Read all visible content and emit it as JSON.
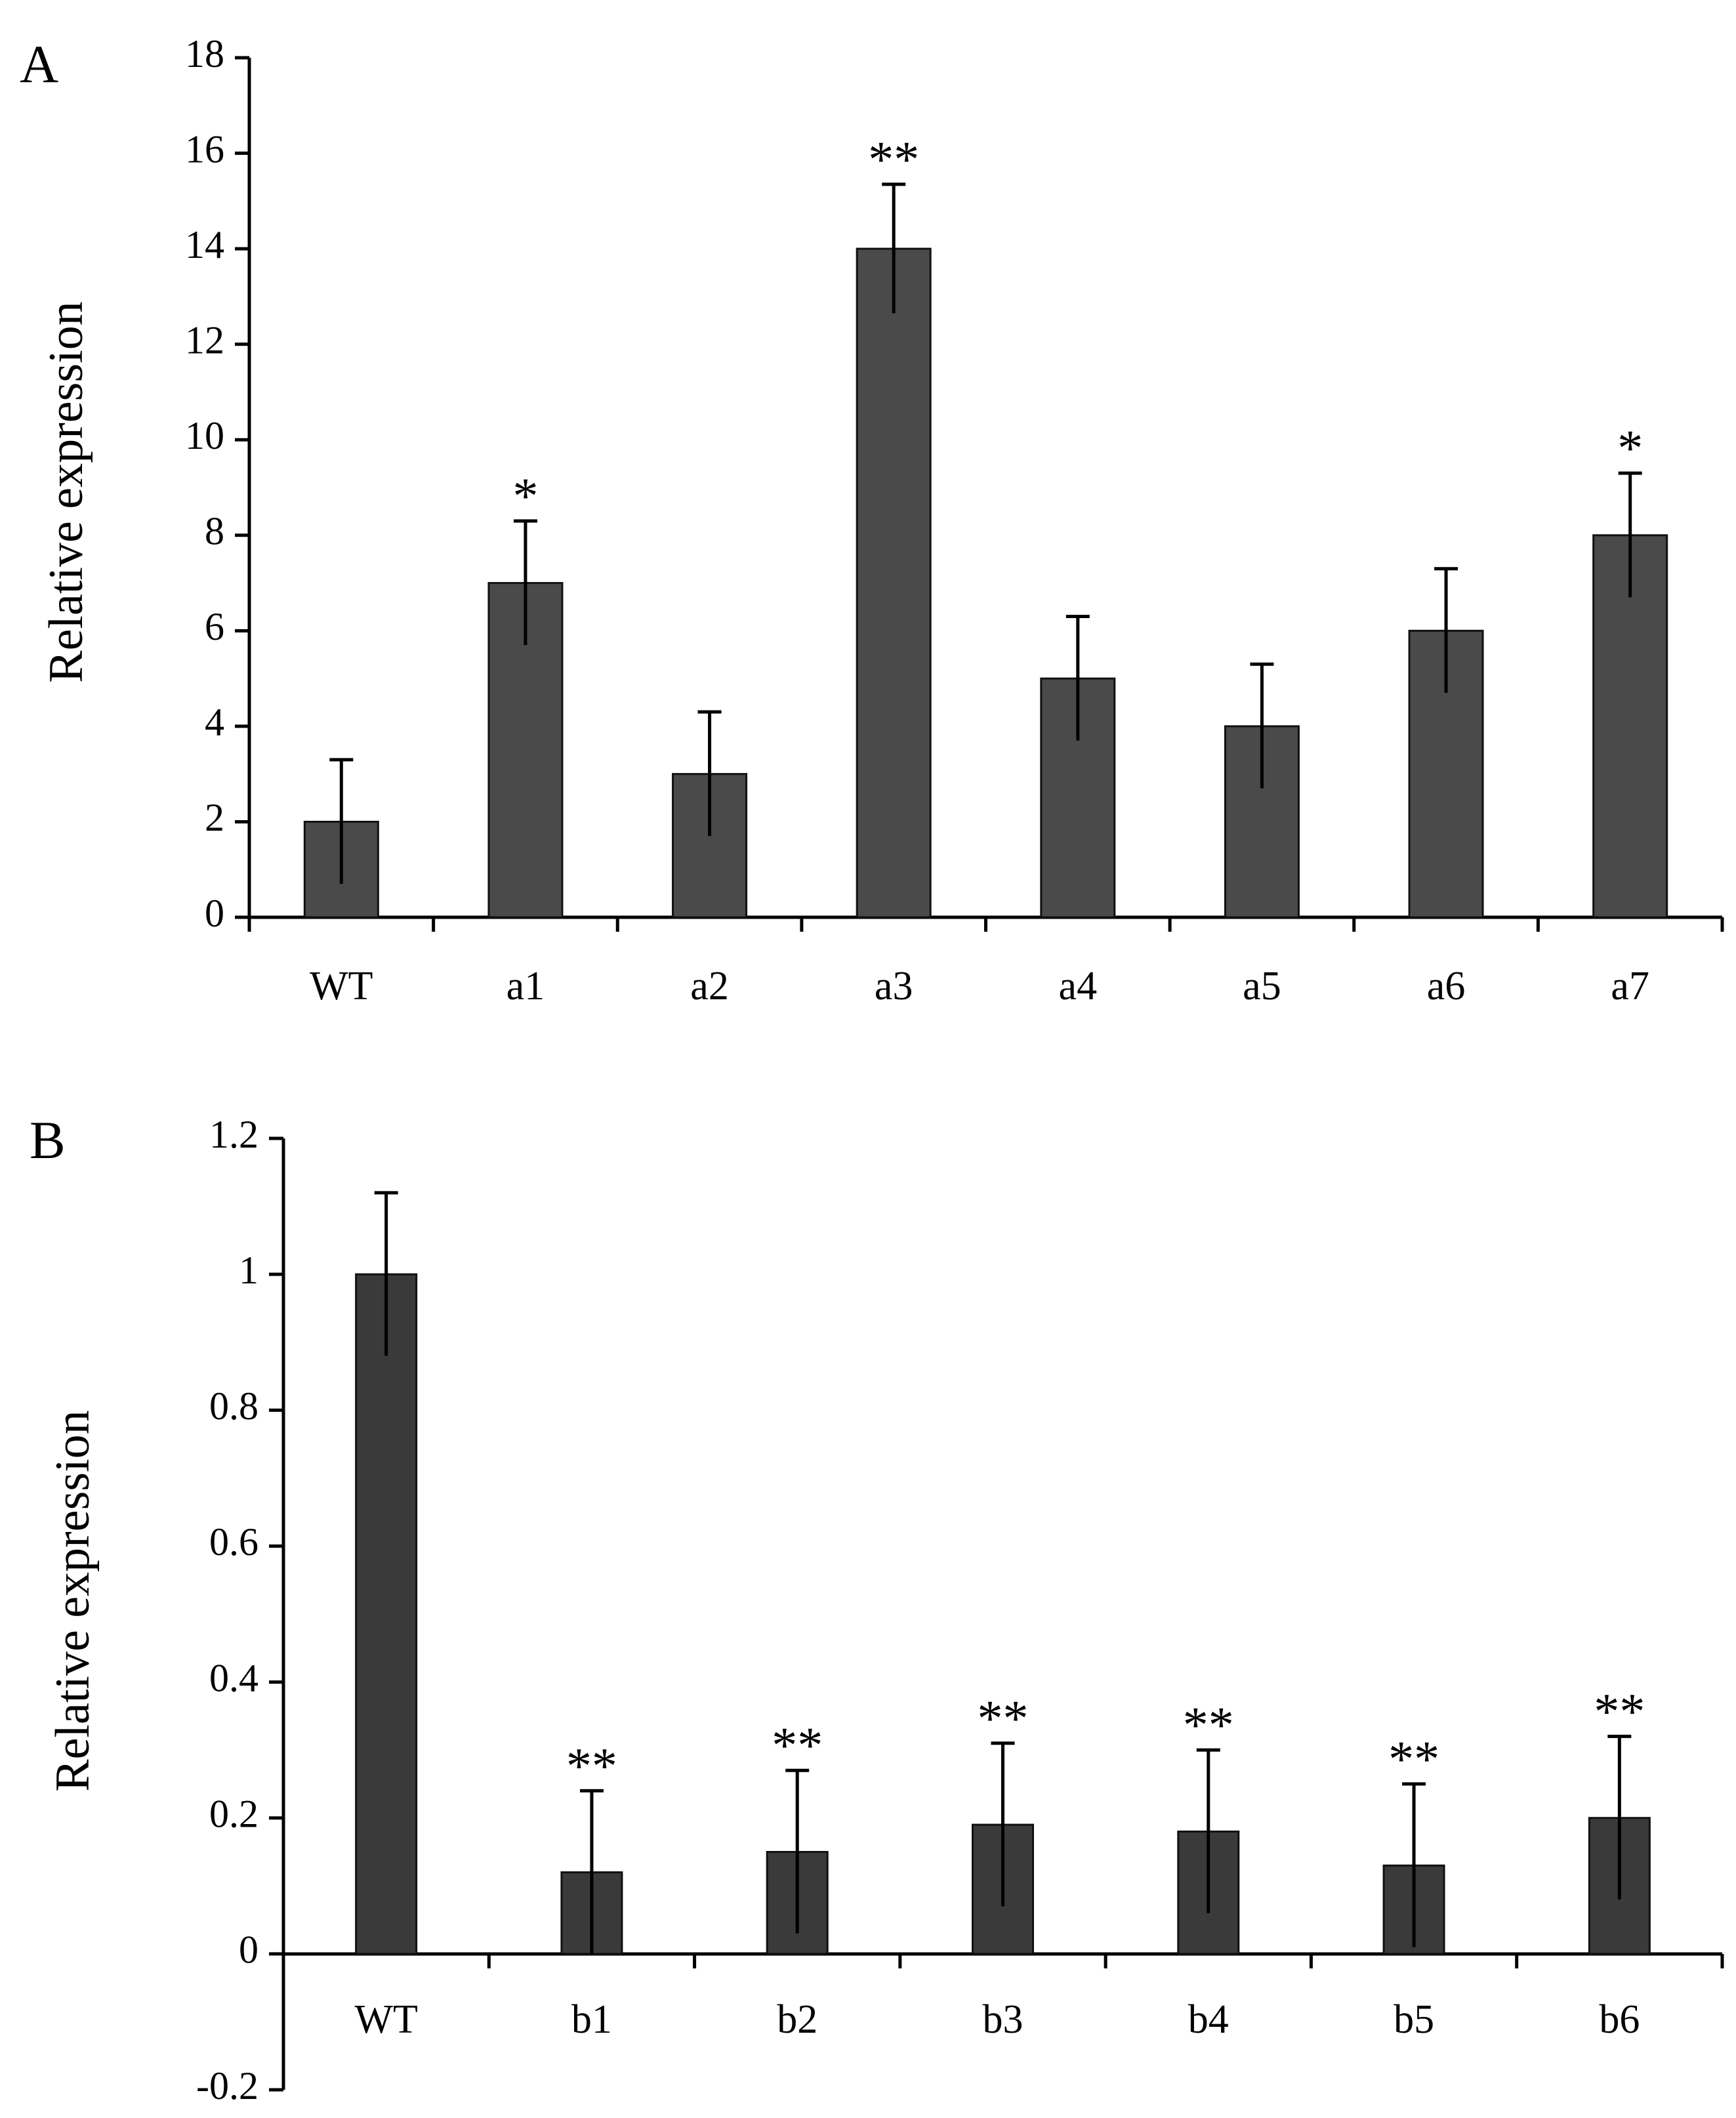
{
  "chart_data": [
    {
      "type": "bar",
      "panel_label": "A",
      "categories": [
        "WT",
        "a1",
        "a2",
        "a3",
        "a4",
        "a5",
        "a6",
        "a7"
      ],
      "values": [
        2,
        7,
        3,
        14,
        5,
        4,
        6,
        8
      ],
      "errors": [
        1.3,
        1.3,
        1.3,
        1.35,
        1.3,
        1.3,
        1.3,
        1.3
      ],
      "significance": [
        "",
        "*",
        "",
        "**",
        "",
        "",
        "",
        "*"
      ],
      "ylabel": "Relative expression",
      "xlabel": "",
      "ylim": [
        0,
        18
      ],
      "yticks": [
        "0",
        "2",
        "4",
        "6",
        "8",
        "10",
        "12",
        "14",
        "16",
        "18"
      ],
      "bar_color": "#4a4a4a",
      "grid": false
    },
    {
      "type": "bar",
      "panel_label": "B",
      "categories": [
        "WT",
        "b1",
        "b2",
        "b3",
        "b4",
        "b5",
        "b6"
      ],
      "values": [
        1.0,
        0.12,
        0.15,
        0.19,
        0.18,
        0.13,
        0.2
      ],
      "errors": [
        0.12,
        0.12,
        0.12,
        0.12,
        0.12,
        0.12,
        0.12
      ],
      "significance": [
        "",
        "**",
        "**",
        "**",
        "**",
        "**",
        "**"
      ],
      "ylabel": "Relative expression",
      "xlabel": "",
      "ylim": [
        -0.2,
        1.2
      ],
      "yticks": [
        "-0.2",
        "0",
        "0.2",
        "0.4",
        "0.6",
        "0.8",
        "1",
        "1.2"
      ],
      "bar_color": "#3a3a3a",
      "grid": false
    }
  ]
}
